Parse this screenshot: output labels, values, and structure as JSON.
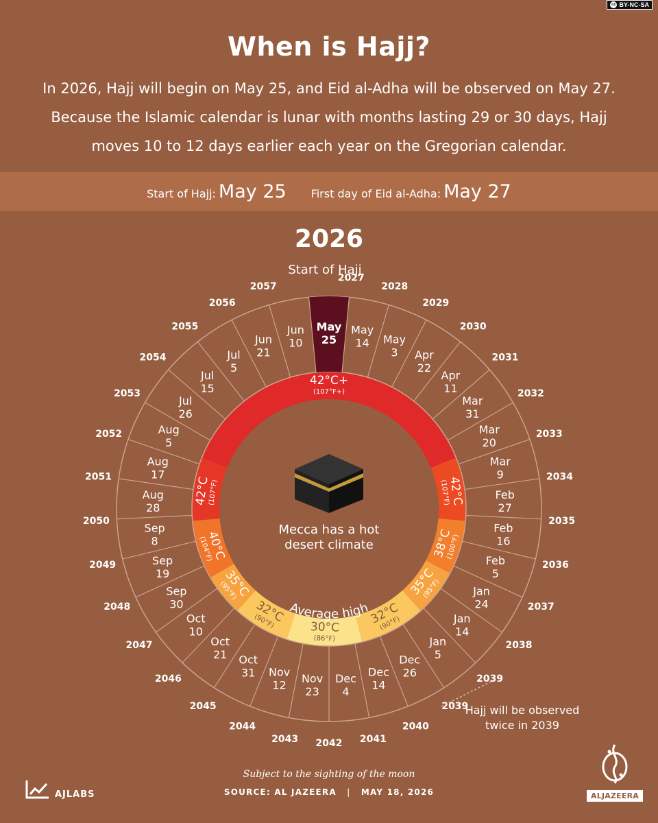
{
  "license": "BY-NC-SA",
  "title": "When is Hajj?",
  "subtitle": "In 2026, Hajj will begin on May 25, and Eid al-Adha will be observed on May 27. Because the Islamic calendar is lunar with months lasting 29 or 30 days, Hajj moves 10 to 12 days earlier each year on the Gregorian calendar.",
  "band": {
    "start_label": "Start of Hajj:",
    "start_value": "May 25",
    "eid_label": "First day of Eid al-Adha:",
    "eid_value": "May 27"
  },
  "year": "2026",
  "start_of_hajj_label": "Start of Hajj",
  "center_text": "Mecca has a hot desert climate",
  "average_high_label": "Average high",
  "note": "Hajj will be observed twice in 2039",
  "footer_note": "Subject to the sighting of the moon",
  "source": {
    "label": "SOURCE:",
    "value": "AL JAZEERA",
    "date": "MAY 18, 2026"
  },
  "ajlabs": "AJLABS",
  "aljazeera": "ALJAZEERA",
  "colors": {
    "background": "#965d40",
    "band": "#ae6c49",
    "highlight": "#5c0f1f",
    "ring_line": "#caa38f"
  },
  "wheel": {
    "years": [
      "2027",
      "2028",
      "2029",
      "2030",
      "2031",
      "2032",
      "2033",
      "2034",
      "2035",
      "2036",
      "2037",
      "2038",
      "2039",
      "2039",
      "2040",
      "2041",
      "2042",
      "2043",
      "2044",
      "2045",
      "2046",
      "2047",
      "2048",
      "2049",
      "2050",
      "2051",
      "2052",
      "2053",
      "2054",
      "2055",
      "2056",
      "2057"
    ],
    "current": {
      "month": "May",
      "day": "25"
    },
    "dates": [
      [
        "May",
        "14"
      ],
      [
        "May",
        "3"
      ],
      [
        "Apr",
        "22"
      ],
      [
        "Apr",
        "11"
      ],
      [
        "Mar",
        "31"
      ],
      [
        "Mar",
        "20"
      ],
      [
        "Mar",
        "9"
      ],
      [
        "Feb",
        "27"
      ],
      [
        "Feb",
        "16"
      ],
      [
        "Feb",
        "5"
      ],
      [
        "Jan",
        "24"
      ],
      [
        "Jan",
        "14"
      ],
      [
        "Jan",
        "5"
      ],
      [
        "Dec",
        "26"
      ],
      [
        "Dec",
        "14"
      ],
      [
        "Dec",
        "4"
      ],
      [
        "Nov",
        "23"
      ],
      [
        "Nov",
        "12"
      ],
      [
        "Oct",
        "31"
      ],
      [
        "Oct",
        "21"
      ],
      [
        "Oct",
        "10"
      ],
      [
        "Sep",
        "30"
      ],
      [
        "Sep",
        "19"
      ],
      [
        "Sep",
        "8"
      ],
      [
        "Aug",
        "28"
      ],
      [
        "Aug",
        "17"
      ],
      [
        "Aug",
        "5"
      ],
      [
        "Jul",
        "26"
      ],
      [
        "Jul",
        "15"
      ],
      [
        "Jul",
        "5"
      ],
      [
        "Jun",
        "21"
      ],
      [
        "Jun",
        "10"
      ]
    ]
  },
  "temperature_ring": [
    {
      "c": "42°C+",
      "f": "(107°F+)",
      "color": "#e02a2a"
    },
    {
      "c": "42°C",
      "f": "(107°F)",
      "color": "#ec4a22"
    },
    {
      "c": "38°C",
      "f": "(100°F)",
      "color": "#f17f2c"
    },
    {
      "c": "35°C",
      "f": "(95°F)",
      "color": "#f7a440"
    },
    {
      "c": "32°C",
      "f": "(90°F)",
      "color": "#fbc860"
    },
    {
      "c": "30°C",
      "f": "(86°F)",
      "color": "#fde28c"
    },
    {
      "c": "32°C",
      "f": "(90°F)",
      "color": "#fbc860"
    },
    {
      "c": "35°C",
      "f": "(95°F)",
      "color": "#f7a440"
    },
    {
      "c": "40°C",
      "f": "(104°F)",
      "color": "#f0742a"
    },
    {
      "c": "42°C",
      "f": "(107°F)",
      "color": "#e63726"
    }
  ]
}
